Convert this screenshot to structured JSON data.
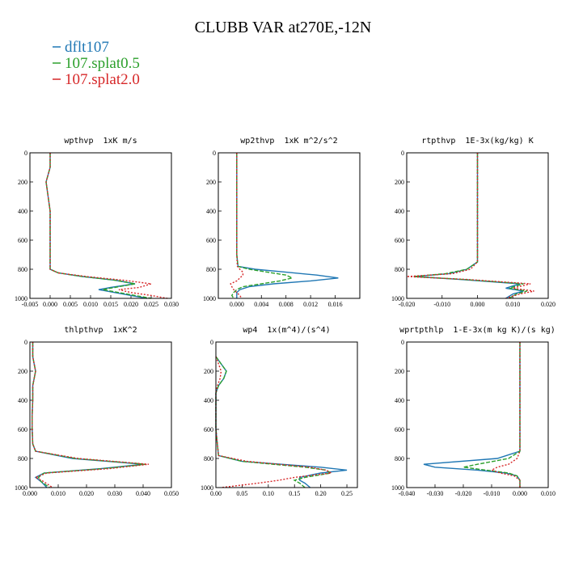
{
  "title": "CLUBB VAR at270E,-12N",
  "chart_data": [
    {
      "type": "line",
      "title": "wpthvp  1xK m/s",
      "orientation": "vertical",
      "y": [
        0,
        100,
        200,
        300,
        400,
        500,
        600,
        700,
        800,
        825,
        850,
        875,
        900,
        925,
        940,
        960,
        980,
        1000
      ],
      "series": [
        {
          "name": "dflt107",
          "color": "#1f77b4",
          "dash": "solid",
          "values": [
            0,
            0,
            -0.001,
            -0.0005,
            0,
            0,
            0,
            0,
            0,
            0.002,
            0.008,
            0.016,
            0.021,
            0.015,
            0.012,
            0.016,
            0.02,
            0.024
          ]
        },
        {
          "name": "107.splat0.5",
          "color": "#2ca02c",
          "dash": "dashed",
          "values": [
            0,
            0,
            -0.001,
            -0.0005,
            0,
            0,
            0,
            0,
            0,
            0.002,
            0.008,
            0.016,
            0.021,
            0.016,
            0.013,
            0.017,
            0.021,
            0.025
          ]
        },
        {
          "name": "107.splat2.0",
          "color": "#d62728",
          "dash": "dotted",
          "values": [
            0,
            0,
            -0.001,
            -0.0005,
            0,
            0,
            0,
            0,
            0,
            0.002,
            0.009,
            0.018,
            0.025,
            0.022,
            0.017,
            0.02,
            0.025,
            0.029
          ]
        }
      ],
      "xlim": [
        -0.005,
        0.03
      ],
      "xticks": [
        -0.005,
        {
          "value": 0,
          "label": "0.000"
        },
        0.005,
        {
          "value": 0.01,
          "label": "0.010"
        },
        0.015,
        {
          "value": 0.02,
          "label": "0.020"
        },
        0.025,
        {
          "value": 0.03,
          "label": "0.030"
        }
      ],
      "ylim": [
        0,
        1000
      ],
      "y_inverted": true,
      "yticks": [
        0,
        200,
        400,
        600,
        800,
        1000
      ]
    },
    {
      "type": "line",
      "title": "wp2thvp  1xK m^2/s^2",
      "orientation": "vertical",
      "y": [
        0,
        200,
        400,
        600,
        700,
        780,
        800,
        820,
        840,
        860,
        880,
        900,
        920,
        940,
        960,
        980,
        1000
      ],
      "series": [
        {
          "name": "dflt107",
          "color": "#1f77b4",
          "dash": "solid",
          "values": [
            0,
            0,
            0,
            0,
            0,
            0.0002,
            0.003,
            0.008,
            0.013,
            0.0165,
            0.012,
            0.006,
            0.002,
            0.0005,
            0,
            0,
            0
          ]
        },
        {
          "name": "107.splat0.5",
          "color": "#2ca02c",
          "dash": "dashed",
          "values": [
            0,
            0,
            0,
            0,
            0,
            0.0002,
            0.002,
            0.005,
            0.008,
            0.009,
            0.007,
            0.004,
            0.001,
            0,
            -0.0005,
            -0.0008,
            -0.0005
          ]
        },
        {
          "name": "107.splat2.0",
          "color": "#d62728",
          "dash": "dotted",
          "values": [
            0,
            0,
            0,
            0,
            0,
            0.0001,
            0.0005,
            0.001,
            0.001,
            0.0005,
            0,
            -0.001,
            -0.0008,
            -0.0005,
            0,
            0.0005,
            0.0008
          ]
        }
      ],
      "xlim": [
        -0.003,
        0.02
      ],
      "xticks": [
        {
          "value": 0,
          "label": "0.000"
        },
        0.004,
        0.008,
        0.012,
        0.016
      ],
      "ylim": [
        0,
        1000
      ],
      "y_inverted": true,
      "yticks": [
        0,
        200,
        400,
        600,
        800,
        1000
      ]
    },
    {
      "type": "line",
      "title": "rtpthvp  1E-3x(kg/kg) K",
      "orientation": "vertical",
      "y": [
        0,
        200,
        400,
        600,
        750,
        800,
        830,
        850,
        870,
        900,
        930,
        950,
        970,
        1000
      ],
      "series": [
        {
          "name": "dflt107",
          "color": "#1f77b4",
          "dash": "solid",
          "values": [
            0,
            0,
            0,
            0,
            0,
            -0.003,
            -0.008,
            -0.018,
            -0.005,
            0.012,
            0.008,
            0.013,
            0.01,
            0.008
          ]
        },
        {
          "name": "107.splat0.5",
          "color": "#2ca02c",
          "dash": "dashed",
          "values": [
            0,
            0,
            0,
            0,
            0,
            -0.003,
            -0.009,
            -0.018,
            -0.004,
            0.013,
            0.009,
            0.014,
            0.011,
            0.009
          ]
        },
        {
          "name": "107.splat2.0",
          "color": "#d62728",
          "dash": "dotted",
          "values": [
            0,
            0,
            0,
            0,
            0,
            -0.002,
            -0.007,
            -0.02,
            -0.003,
            0.015,
            0.01,
            0.016,
            0.012,
            0.008
          ]
        }
      ],
      "xlim": [
        -0.02,
        0.02
      ],
      "xticks": [
        {
          "value": -0.02,
          "label": "-0.020"
        },
        {
          "value": -0.01,
          "label": "-0.010"
        },
        {
          "value": 0,
          "label": "0.000"
        },
        {
          "value": 0.01,
          "label": "0.010"
        },
        {
          "value": 0.02,
          "label": "0.020"
        }
      ],
      "ylim": [
        0,
        1000
      ],
      "y_inverted": true,
      "yticks": [
        0,
        200,
        400,
        600,
        800,
        1000
      ]
    },
    {
      "type": "line",
      "title": "thlpthvp  1xK^2",
      "orientation": "vertical",
      "y": [
        0,
        100,
        200,
        300,
        400,
        500,
        600,
        700,
        750,
        800,
        840,
        870,
        900,
        930,
        960,
        1000
      ],
      "series": [
        {
          "name": "dflt107",
          "color": "#1f77b4",
          "dash": "solid",
          "values": [
            0.001,
            0.001,
            0.002,
            0.001,
            0.001,
            0.0008,
            0.0008,
            0.001,
            0.002,
            0.015,
            0.04,
            0.025,
            0.005,
            0.002,
            0.004,
            0.006
          ]
        },
        {
          "name": "107.splat0.5",
          "color": "#2ca02c",
          "dash": "dashed",
          "values": [
            0.001,
            0.001,
            0.002,
            0.001,
            0.001,
            0.0008,
            0.0008,
            0.001,
            0.002,
            0.016,
            0.041,
            0.026,
            0.005,
            0.003,
            0.004,
            0.007
          ]
        },
        {
          "name": "107.splat2.0",
          "color": "#d62728",
          "dash": "dotted",
          "values": [
            0.001,
            0.001,
            0.002,
            0.001,
            0.001,
            0.0008,
            0.0008,
            0.001,
            0.002,
            0.017,
            0.042,
            0.028,
            0.006,
            0.002,
            0.005,
            0.008
          ]
        }
      ],
      "xlim": [
        0,
        0.05
      ],
      "xticks": [
        {
          "value": 0,
          "label": "0.000"
        },
        {
          "value": 0.01,
          "label": "0.010"
        },
        {
          "value": 0.02,
          "label": "0.020"
        },
        {
          "value": 0.03,
          "label": "0.030"
        },
        {
          "value": 0.04,
          "label": "0.040"
        },
        {
          "value": 0.05,
          "label": "0.050"
        }
      ],
      "ylim": [
        0,
        1000
      ],
      "y_inverted": true,
      "yticks": [
        0,
        200,
        400,
        600,
        800,
        1000
      ]
    },
    {
      "type": "line",
      "title": "wp4  1x(m^4)/(s^4)",
      "orientation": "vertical",
      "y": [
        100,
        150,
        200,
        250,
        300,
        350,
        400,
        600,
        780,
        820,
        860,
        880,
        900,
        930,
        950,
        970,
        1000
      ],
      "series": [
        {
          "name": "dflt107",
          "color": "#1f77b4",
          "dash": "solid",
          "values": [
            0,
            0.01,
            0.02,
            0.015,
            0.005,
            0,
            0,
            0,
            0.005,
            0.05,
            0.2,
            0.25,
            0.2,
            0.16,
            0.16,
            0.17,
            0.18
          ]
        },
        {
          "name": "107.splat0.5",
          "color": "#2ca02c",
          "dash": "dashed",
          "values": [
            0,
            0.01,
            0.02,
            0.015,
            0.005,
            0,
            0,
            0,
            0.005,
            0.05,
            0.17,
            0.21,
            0.22,
            0.17,
            0.15,
            0.16,
            0.17
          ]
        },
        {
          "name": "107.splat2.0",
          "color": "#d62728",
          "dash": "dotted",
          "values": [
            0,
            0.005,
            0.01,
            0.008,
            0.003,
            0,
            0,
            0,
            0.005,
            0.06,
            0.18,
            0.21,
            0.22,
            0.15,
            0.12,
            0.08,
            0.01
          ]
        }
      ],
      "xlim": [
        0,
        0.27
      ],
      "xticks": [
        {
          "value": 0,
          "label": "0.00"
        },
        0.05,
        {
          "value": 0.1,
          "label": "0.10"
        },
        0.15,
        {
          "value": 0.2,
          "label": "0.20"
        },
        0.25
      ],
      "ylim": [
        0,
        1000
      ],
      "y_inverted": true,
      "yticks": [
        0,
        200,
        400,
        600,
        800,
        1000
      ]
    },
    {
      "type": "line",
      "title": "wprtpthlp  1-E-3x(m kg K)/(s kg)",
      "orientation": "vertical",
      "y": [
        0,
        200,
        400,
        600,
        750,
        800,
        840,
        860,
        880,
        900,
        920,
        950,
        1000
      ],
      "series": [
        {
          "name": "dflt107",
          "color": "#1f77b4",
          "dash": "solid",
          "values": [
            0,
            0,
            0,
            0,
            0,
            -0.008,
            -0.034,
            -0.03,
            -0.015,
            -0.005,
            -0.001,
            0,
            0
          ]
        },
        {
          "name": "107.splat0.5",
          "color": "#2ca02c",
          "dash": "dashed",
          "values": [
            0,
            0,
            0,
            0,
            0,
            -0.004,
            -0.015,
            -0.02,
            -0.012,
            -0.004,
            -0.001,
            0,
            0
          ]
        },
        {
          "name": "107.splat2.0",
          "color": "#d62728",
          "dash": "dotted",
          "values": [
            0,
            0,
            0,
            0,
            0,
            -0.001,
            -0.004,
            -0.008,
            -0.01,
            -0.007,
            -0.002,
            0,
            0
          ]
        }
      ],
      "xlim": [
        -0.04,
        0.01
      ],
      "xticks": [
        {
          "value": -0.04,
          "label": "-0.040"
        },
        {
          "value": -0.03,
          "label": "-0.030"
        },
        {
          "value": -0.02,
          "label": "-0.020"
        },
        {
          "value": -0.01,
          "label": "-0.010"
        },
        {
          "value": 0,
          "label": "0.000"
        },
        {
          "value": 0.01,
          "label": "0.010"
        }
      ],
      "ylim": [
        0,
        1000
      ],
      "y_inverted": true,
      "yticks": [
        0,
        200,
        400,
        600,
        800,
        1000
      ]
    }
  ]
}
